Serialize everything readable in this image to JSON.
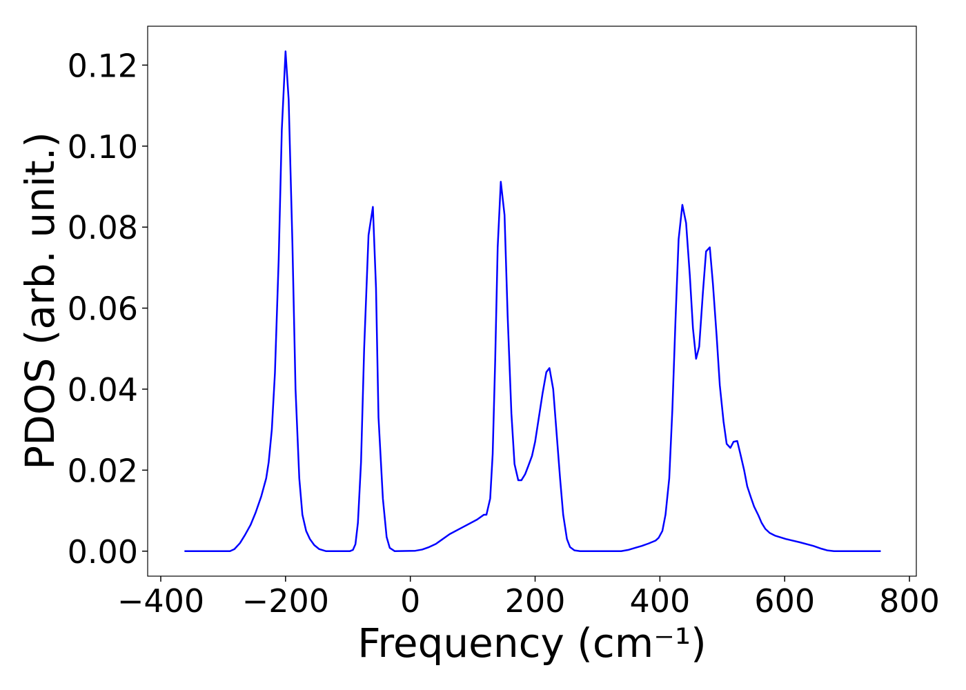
{
  "chart_data": {
    "type": "line",
    "xlabel": "Frequency (cm⁻¹)",
    "ylabel": "PDOS (arb. unit.)",
    "color": "#0000ff",
    "xlim": [
      -421,
      811
    ],
    "ylim": [
      -0.00617,
      0.1296
    ],
    "xticks": [
      {
        "value": -400,
        "label": "−400"
      },
      {
        "value": -200,
        "label": "−200"
      },
      0,
      200,
      400,
      600,
      800
    ],
    "yticks": [
      {
        "value": 0,
        "label": "0.00"
      },
      {
        "value": 0.02,
        "label": "0.02"
      },
      {
        "value": 0.04,
        "label": "0.04"
      },
      {
        "value": 0.06,
        "label": "0.06"
      },
      {
        "value": 0.08,
        "label": "0.08"
      },
      {
        "value": 0.1,
        "label": "0.10"
      },
      {
        "value": 0.12,
        "label": "0.12"
      }
    ],
    "x": [
      -362,
      -289,
      -282,
      -273,
      -265,
      -256,
      -248,
      -239,
      -231,
      -227,
      -222,
      -217,
      -211,
      -206,
      -200,
      -195,
      -189,
      -184,
      -178,
      -173,
      -167,
      -161,
      -154,
      -146,
      -135,
      -97,
      -92,
      -88,
      -84,
      -79,
      -74,
      -67,
      -60,
      -55,
      -51,
      -44,
      -38,
      -33,
      -25,
      8,
      19,
      30,
      41,
      52,
      63,
      85,
      107,
      118,
      122,
      128,
      132,
      136,
      140,
      145,
      151,
      156,
      162,
      167,
      173,
      178,
      184,
      189,
      195,
      200,
      206,
      212,
      218,
      223,
      229,
      234,
      240,
      245,
      251,
      256,
      263,
      272,
      338,
      349,
      360,
      371,
      382,
      393,
      398,
      404,
      409,
      415,
      420,
      425,
      430,
      436,
      442,
      448,
      453,
      458,
      463,
      469,
      474,
      480,
      485,
      491,
      496,
      502,
      507,
      513,
      518,
      524,
      529,
      535,
      540,
      546,
      551,
      558,
      563,
      569,
      576,
      585,
      602,
      624,
      646,
      659,
      668,
      679,
      754
    ],
    "values": [
      0,
      0,
      0.0005,
      0.002,
      0.004,
      0.0065,
      0.0095,
      0.0135,
      0.018,
      0.022,
      0.03,
      0.044,
      0.072,
      0.104,
      0.1234,
      0.1115,
      0.076,
      0.04,
      0.018,
      0.009,
      0.005,
      0.003,
      0.0015,
      0.0005,
      0,
      0,
      0.0003,
      0.0017,
      0.007,
      0.022,
      0.05,
      0.078,
      0.085,
      0.065,
      0.033,
      0.013,
      0.0035,
      0.0008,
      0,
      0.0001,
      0.0004,
      0.001,
      0.0018,
      0.003,
      0.0042,
      0.006,
      0.0078,
      0.009,
      0.009,
      0.013,
      0.024,
      0.047,
      0.075,
      0.0912,
      0.083,
      0.058,
      0.034,
      0.0215,
      0.0175,
      0.0175,
      0.019,
      0.021,
      0.0235,
      0.027,
      0.033,
      0.039,
      0.0442,
      0.0452,
      0.04,
      0.03,
      0.018,
      0.009,
      0.003,
      0.001,
      0.0002,
      0,
      0,
      0.0003,
      0.0008,
      0.0013,
      0.0019,
      0.0026,
      0.0033,
      0.005,
      0.009,
      0.018,
      0.035,
      0.057,
      0.077,
      0.0855,
      0.081,
      0.068,
      0.055,
      0.0475,
      0.0505,
      0.064,
      0.074,
      0.075,
      0.066,
      0.053,
      0.041,
      0.032,
      0.0265,
      0.0255,
      0.027,
      0.0272,
      0.024,
      0.02,
      0.016,
      0.0132,
      0.011,
      0.0088,
      0.007,
      0.0055,
      0.0045,
      0.0038,
      0.003,
      0.0022,
      0.0013,
      0.0006,
      0.0002,
      0,
      0
    ]
  }
}
